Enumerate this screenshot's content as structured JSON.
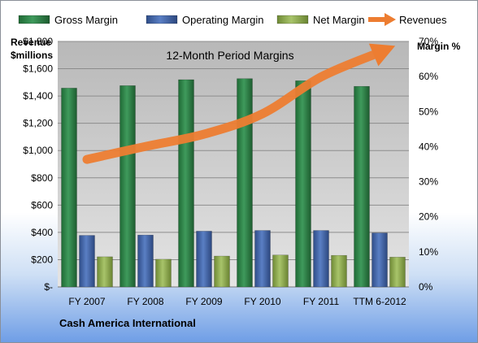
{
  "chart_data": {
    "type": "bar",
    "title": "12-Month Period Margins",
    "company": "Cash America International",
    "left_axis_label": [
      "Revenue",
      "$millions"
    ],
    "right_axis_label": "Margin %",
    "categories": [
      "FY 2007",
      "FY 2008",
      "FY 2009",
      "FY 2010",
      "FY 2011",
      "TTM 6-2012"
    ],
    "left_ticks": [
      "$-",
      "$200",
      "$400",
      "$600",
      "$800",
      "$1,000",
      "$1,200",
      "$1,400",
      "$1,600",
      "$1,800"
    ],
    "right_ticks": [
      "0%",
      "10%",
      "20%",
      "30%",
      "40%",
      "50%",
      "60%",
      "70%"
    ],
    "ylim_margin": [
      0,
      70
    ],
    "grid": true,
    "legend_position": "top",
    "series": [
      {
        "name": "Gross Margin",
        "type": "bar",
        "color": "#2e7d46",
        "values": [
          56.7,
          57.4,
          59.1,
          59.4,
          58.8,
          57.2
        ]
      },
      {
        "name": "Operating Margin",
        "type": "bar",
        "color": "#3f5f9f",
        "values": [
          14.7,
          14.8,
          15.9,
          16.1,
          16.1,
          15.4
        ]
      },
      {
        "name": "Net Margin",
        "type": "bar",
        "color": "#8aa646",
        "values": [
          8.6,
          7.9,
          8.8,
          9.1,
          9.0,
          8.5
        ]
      },
      {
        "name": "Revenues",
        "type": "arrow",
        "color": "#ed7d31",
        "values": [
          935,
          1030,
          1120,
          1270,
          1540,
          1720
        ]
      }
    ]
  }
}
